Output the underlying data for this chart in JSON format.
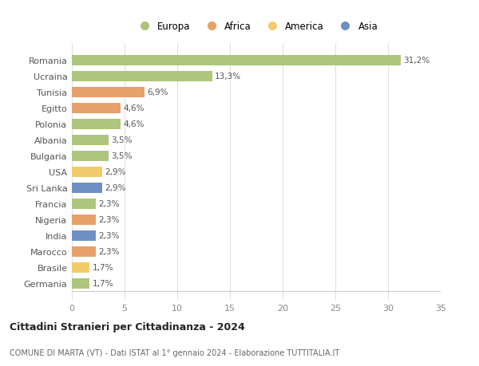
{
  "categories": [
    "Germania",
    "Brasile",
    "Marocco",
    "India",
    "Nigeria",
    "Francia",
    "Sri Lanka",
    "USA",
    "Bulgaria",
    "Albania",
    "Polonia",
    "Egitto",
    "Tunisia",
    "Ucraina",
    "Romania"
  ],
  "values": [
    1.7,
    1.7,
    2.3,
    2.3,
    2.3,
    2.3,
    2.9,
    2.9,
    3.5,
    3.5,
    4.6,
    4.6,
    6.9,
    13.3,
    31.2
  ],
  "labels": [
    "1,7%",
    "1,7%",
    "2,3%",
    "2,3%",
    "2,3%",
    "2,3%",
    "2,9%",
    "2,9%",
    "3,5%",
    "3,5%",
    "4,6%",
    "4,6%",
    "6,9%",
    "13,3%",
    "31,2%"
  ],
  "colors": [
    "#adc57d",
    "#f2cc6b",
    "#e8a06a",
    "#6f8fc4",
    "#e8a06a",
    "#adc57d",
    "#6f8fc4",
    "#f2cc6b",
    "#adc57d",
    "#adc57d",
    "#adc57d",
    "#e8a06a",
    "#e8a06a",
    "#adc57d",
    "#adc57d"
  ],
  "legend_labels": [
    "Europa",
    "Africa",
    "America",
    "Asia"
  ],
  "legend_colors": [
    "#adc57d",
    "#e8a06a",
    "#f2cc6b",
    "#6f8fc4"
  ],
  "title": "Cittadini Stranieri per Cittadinanza - 2024",
  "subtitle": "COMUNE DI MARTA (VT) - Dati ISTAT al 1° gennaio 2024 - Elaborazione TUTTITALIA.IT",
  "xlim": [
    0,
    35
  ],
  "xticks": [
    0,
    5,
    10,
    15,
    20,
    25,
    30,
    35
  ],
  "background_color": "#ffffff",
  "grid_color": "#e0e0e0"
}
